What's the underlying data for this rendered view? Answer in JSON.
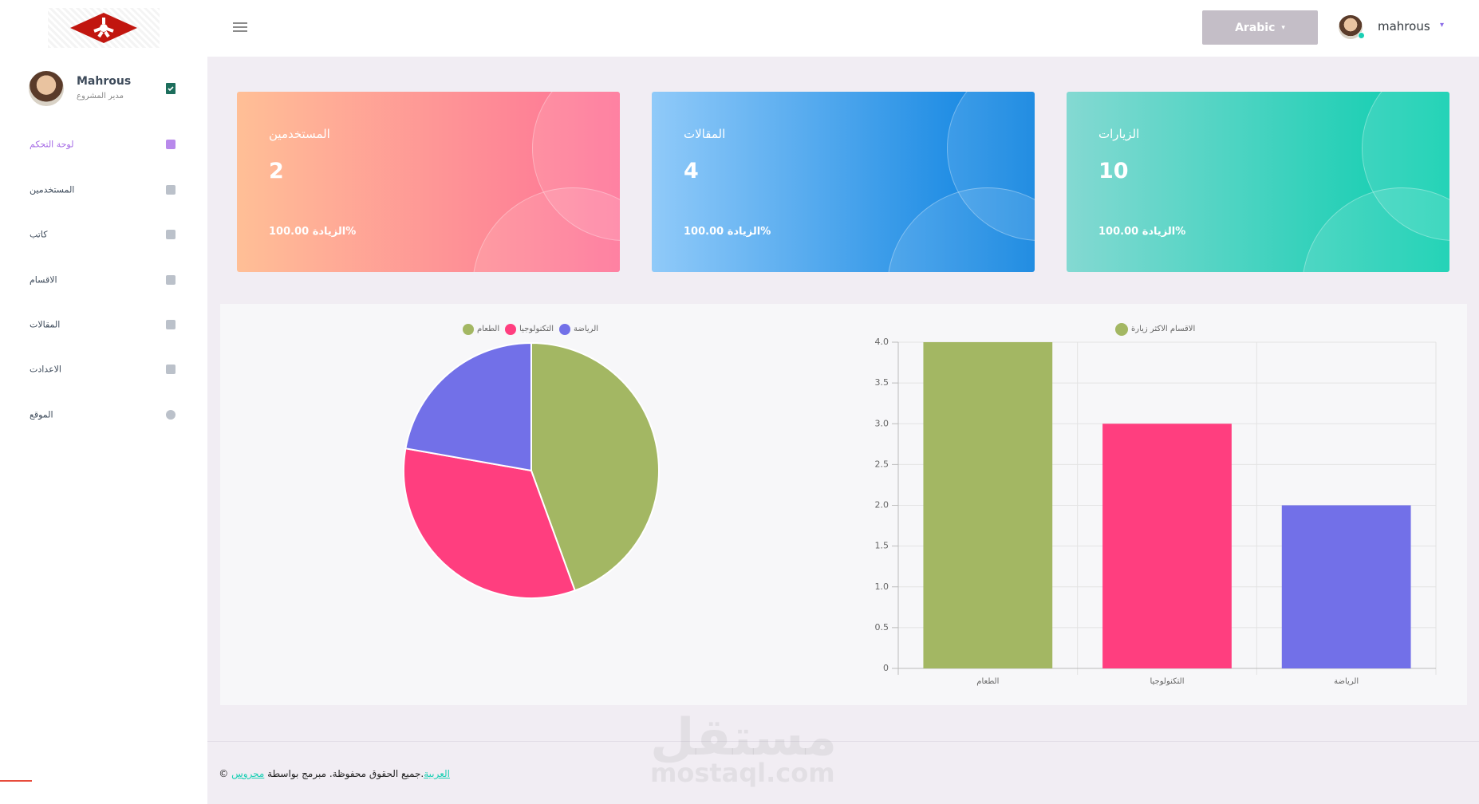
{
  "header": {
    "language": "Arabic",
    "username": "mahrous"
  },
  "sidebar": {
    "name": "Mahrous",
    "role": "مدير المشروع",
    "menu": [
      "لوحة التحكم",
      "المستخدمين",
      "كاتب",
      "الاقسام",
      "المقالات",
      "الاعدادت",
      "الموقع"
    ]
  },
  "cards": [
    {
      "title": "المستخدمين",
      "value": 2,
      "footer": "100.00 الزيادة%"
    },
    {
      "title": "المقالات",
      "value": 4,
      "footer": "100.00 الزيادة%"
    },
    {
      "title": "الزيارات",
      "value": 10,
      "footer": "100.00 الزيادة%"
    }
  ],
  "chart_data": [
    {
      "type": "pie",
      "categories": [
        "الطعام",
        "التكنولوجيا",
        "الرياضة"
      ],
      "values": [
        4,
        3,
        2
      ],
      "colors": [
        "#a3b763",
        "#ff3e7f",
        "#7270e8"
      ],
      "legend": "top"
    },
    {
      "type": "bar",
      "categories": [
        "الطعام",
        "التكنولوجيا",
        "الرياضة"
      ],
      "series": [
        {
          "name": "الاقسام الاكثر زيارة",
          "values": [
            4,
            3,
            2
          ]
        }
      ],
      "colors": [
        "#a3b763",
        "#ff3e7f",
        "#7270e8"
      ],
      "ylim": [
        0,
        4
      ],
      "yticks": [
        0,
        0.5,
        {
          "value": 1,
          "label": "1.0"
        },
        1.5,
        {
          "value": 2,
          "label": "2.0"
        },
        2.5,
        {
          "value": 3,
          "label": "3.0"
        },
        3.5,
        {
          "value": 4,
          "label": "4.0"
        }
      ],
      "grid": true,
      "legend": "top"
    }
  ],
  "footer": {
    "link1": "العربية",
    "text": ".جميع الحقوق محفوظة. مبرمج بواسطة",
    "link2": "محروس",
    "copyright": "©"
  },
  "watermark": {
    "arabic": "مستقل",
    "latin": "mostaql.com"
  }
}
